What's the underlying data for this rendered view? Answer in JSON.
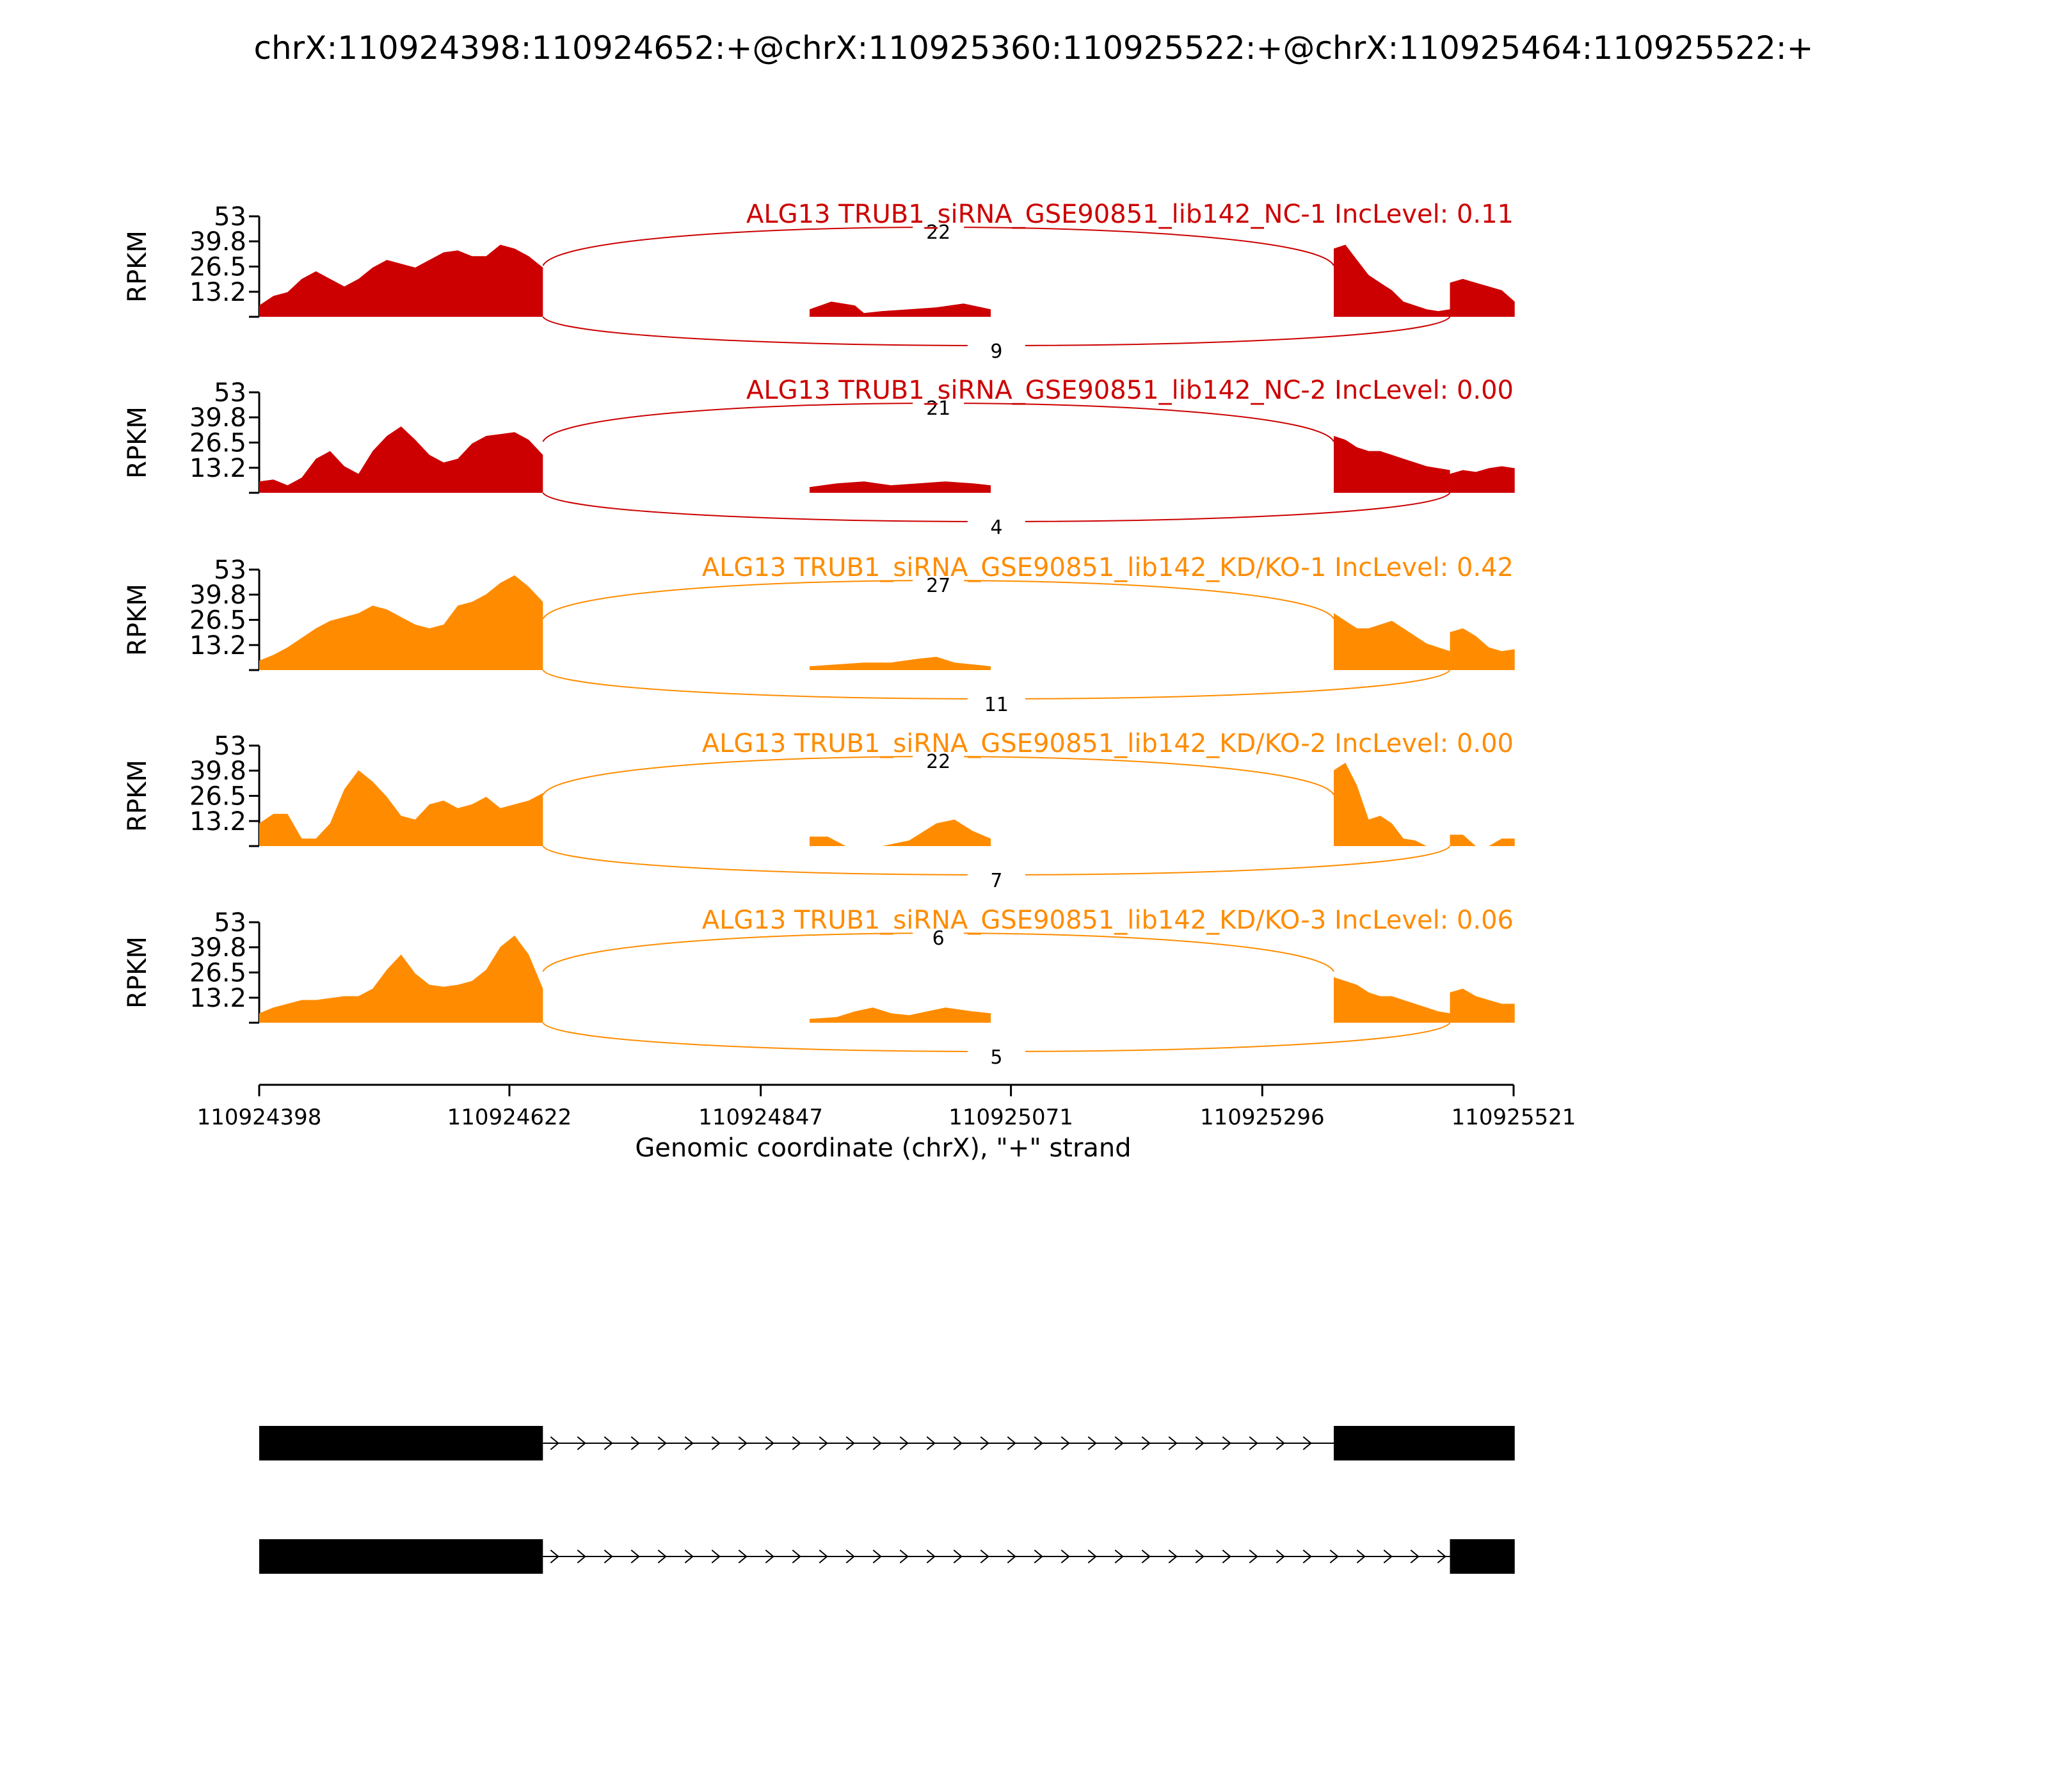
{
  "title": "chrX:110924398:110924652:+@chrX:110925360:110925522:+@chrX:110925464:110925522:+",
  "colors": {
    "nc": "#cc0000",
    "kd": "#ff8c00",
    "axis": "#000000",
    "structure": "#000000"
  },
  "chart_data": {
    "type": "area",
    "xlabel": "Genomic coordinate (chrX), \"+\" strand",
    "xticks": [
      "110924398",
      "110924622",
      "110924847",
      "110925071",
      "110925296",
      "110925521"
    ],
    "xlim": [
      110924398,
      110925521
    ],
    "ylabel": "RPKM",
    "yticks": [
      "53",
      "39.8",
      "26.5",
      "13.2"
    ],
    "ylim": [
      0,
      53
    ],
    "exons": {
      "upstream": [
        110924398,
        110924652
      ],
      "middle": [
        110925360,
        110925522
      ],
      "skipped_region_start": 110925464
    },
    "tracks": [
      {
        "label": "ALG13 TRUB1_siRNA_GSE90851_lib142_NC-1 IncLevel: 0.11",
        "group": "nc",
        "junction_upper": "22",
        "junction_lower": "9",
        "exon1": [
          [
            0,
            6
          ],
          [
            0.05,
            11
          ],
          [
            0.1,
            13
          ],
          [
            0.15,
            20
          ],
          [
            0.2,
            24
          ],
          [
            0.25,
            20
          ],
          [
            0.3,
            16
          ],
          [
            0.35,
            20
          ],
          [
            0.4,
            26
          ],
          [
            0.45,
            30
          ],
          [
            0.5,
            28
          ],
          [
            0.55,
            26
          ],
          [
            0.6,
            30
          ],
          [
            0.65,
            34
          ],
          [
            0.7,
            35
          ],
          [
            0.75,
            32
          ],
          [
            0.8,
            32
          ],
          [
            0.85,
            38
          ],
          [
            0.9,
            36
          ],
          [
            0.95,
            32
          ],
          [
            1,
            26
          ]
        ],
        "mid": [
          [
            0,
            4
          ],
          [
            0.12,
            8
          ],
          [
            0.25,
            6
          ],
          [
            0.3,
            2
          ],
          [
            0.4,
            3
          ],
          [
            0.55,
            4
          ],
          [
            0.7,
            5
          ],
          [
            0.85,
            7
          ],
          [
            1,
            4
          ]
        ],
        "exon2": [
          [
            0,
            36
          ],
          [
            0.1,
            38
          ],
          [
            0.2,
            30
          ],
          [
            0.3,
            22
          ],
          [
            0.4,
            18
          ],
          [
            0.5,
            14
          ],
          [
            0.6,
            8
          ],
          [
            0.7,
            6
          ],
          [
            0.8,
            4
          ],
          [
            0.9,
            3
          ],
          [
            1,
            4
          ]
        ],
        "exon3": [
          [
            0,
            18
          ],
          [
            0.2,
            20
          ],
          [
            0.4,
            18
          ],
          [
            0.6,
            16
          ],
          [
            0.8,
            14
          ],
          [
            1,
            8
          ]
        ]
      },
      {
        "label": "ALG13 TRUB1_siRNA_GSE90851_lib142_NC-2 IncLevel: 0.00",
        "group": "nc",
        "junction_upper": "21",
        "junction_lower": "4",
        "exon1": [
          [
            0,
            6
          ],
          [
            0.05,
            7
          ],
          [
            0.1,
            4
          ],
          [
            0.15,
            8
          ],
          [
            0.2,
            18
          ],
          [
            0.25,
            22
          ],
          [
            0.3,
            14
          ],
          [
            0.35,
            10
          ],
          [
            0.4,
            22
          ],
          [
            0.45,
            30
          ],
          [
            0.5,
            35
          ],
          [
            0.55,
            28
          ],
          [
            0.6,
            20
          ],
          [
            0.65,
            16
          ],
          [
            0.7,
            18
          ],
          [
            0.75,
            26
          ],
          [
            0.8,
            30
          ],
          [
            0.85,
            31
          ],
          [
            0.9,
            32
          ],
          [
            0.95,
            28
          ],
          [
            1,
            20
          ]
        ],
        "mid": [
          [
            0,
            3
          ],
          [
            0.15,
            5
          ],
          [
            0.3,
            6
          ],
          [
            0.45,
            4
          ],
          [
            0.6,
            5
          ],
          [
            0.75,
            6
          ],
          [
            0.9,
            5
          ],
          [
            1,
            4
          ]
        ],
        "exon2": [
          [
            0,
            30
          ],
          [
            0.1,
            28
          ],
          [
            0.2,
            24
          ],
          [
            0.3,
            22
          ],
          [
            0.4,
            22
          ],
          [
            0.5,
            20
          ],
          [
            0.6,
            18
          ],
          [
            0.7,
            16
          ],
          [
            0.8,
            14
          ],
          [
            0.9,
            13
          ],
          [
            1,
            12
          ]
        ],
        "exon3": [
          [
            0,
            10
          ],
          [
            0.2,
            12
          ],
          [
            0.4,
            11
          ],
          [
            0.6,
            13
          ],
          [
            0.8,
            14
          ],
          [
            1,
            13
          ]
        ]
      },
      {
        "label": "ALG13 TRUB1_siRNA_GSE90851_lib142_KD/KO-1 IncLevel: 0.42",
        "group": "kd",
        "junction_upper": "27",
        "junction_lower": "11",
        "exon1": [
          [
            0,
            5
          ],
          [
            0.05,
            8
          ],
          [
            0.1,
            12
          ],
          [
            0.15,
            17
          ],
          [
            0.2,
            22
          ],
          [
            0.25,
            26
          ],
          [
            0.3,
            28
          ],
          [
            0.35,
            30
          ],
          [
            0.4,
            34
          ],
          [
            0.45,
            32
          ],
          [
            0.5,
            28
          ],
          [
            0.55,
            24
          ],
          [
            0.6,
            22
          ],
          [
            0.65,
            24
          ],
          [
            0.7,
            34
          ],
          [
            0.75,
            36
          ],
          [
            0.8,
            40
          ],
          [
            0.85,
            46
          ],
          [
            0.9,
            50
          ],
          [
            0.95,
            44
          ],
          [
            1,
            36
          ]
        ],
        "mid": [
          [
            0,
            2
          ],
          [
            0.15,
            3
          ],
          [
            0.3,
            4
          ],
          [
            0.45,
            4
          ],
          [
            0.6,
            6
          ],
          [
            0.7,
            7
          ],
          [
            0.8,
            4
          ],
          [
            0.9,
            3
          ],
          [
            1,
            2
          ]
        ],
        "exon2": [
          [
            0,
            30
          ],
          [
            0.1,
            26
          ],
          [
            0.2,
            22
          ],
          [
            0.3,
            22
          ],
          [
            0.4,
            24
          ],
          [
            0.5,
            26
          ],
          [
            0.6,
            22
          ],
          [
            0.7,
            18
          ],
          [
            0.8,
            14
          ],
          [
            0.9,
            12
          ],
          [
            1,
            10
          ]
        ],
        "exon3": [
          [
            0,
            20
          ],
          [
            0.2,
            22
          ],
          [
            0.4,
            18
          ],
          [
            0.6,
            12
          ],
          [
            0.8,
            10
          ],
          [
            1,
            11
          ]
        ]
      },
      {
        "label": "ALG13 TRUB1_siRNA_GSE90851_lib142_KD/KO-2 IncLevel: 0.00",
        "group": "kd",
        "junction_upper": "22",
        "junction_lower": "7",
        "exon1": [
          [
            0,
            12
          ],
          [
            0.05,
            17
          ],
          [
            0.1,
            17
          ],
          [
            0.15,
            4
          ],
          [
            0.2,
            4
          ],
          [
            0.25,
            12
          ],
          [
            0.3,
            30
          ],
          [
            0.35,
            40
          ],
          [
            0.4,
            34
          ],
          [
            0.45,
            26
          ],
          [
            0.5,
            16
          ],
          [
            0.55,
            14
          ],
          [
            0.6,
            22
          ],
          [
            0.65,
            24
          ],
          [
            0.7,
            20
          ],
          [
            0.75,
            22
          ],
          [
            0.8,
            26
          ],
          [
            0.85,
            20
          ],
          [
            0.9,
            22
          ],
          [
            0.95,
            24
          ],
          [
            1,
            28
          ]
        ],
        "mid": [
          [
            0,
            5
          ],
          [
            0.1,
            5
          ],
          [
            0.2,
            0
          ],
          [
            0.4,
            0
          ],
          [
            0.55,
            3
          ],
          [
            0.7,
            12
          ],
          [
            0.8,
            14
          ],
          [
            0.9,
            8
          ],
          [
            1,
            4
          ]
        ],
        "exon2": [
          [
            0,
            40
          ],
          [
            0.1,
            44
          ],
          [
            0.2,
            32
          ],
          [
            0.3,
            14
          ],
          [
            0.4,
            16
          ],
          [
            0.5,
            12
          ],
          [
            0.6,
            4
          ],
          [
            0.7,
            3
          ],
          [
            0.8,
            0
          ],
          [
            0.9,
            0
          ],
          [
            1,
            0
          ]
        ],
        "exon3": [
          [
            0,
            6
          ],
          [
            0.2,
            6
          ],
          [
            0.4,
            0
          ],
          [
            0.6,
            0
          ],
          [
            0.8,
            4
          ],
          [
            1,
            4
          ]
        ]
      },
      {
        "label": "ALG13 TRUB1_siRNA_GSE90851_lib142_KD/KO-3 IncLevel: 0.06",
        "group": "kd",
        "junction_upper": "6",
        "junction_lower": "5",
        "exon1": [
          [
            0,
            5
          ],
          [
            0.05,
            8
          ],
          [
            0.1,
            10
          ],
          [
            0.15,
            12
          ],
          [
            0.2,
            12
          ],
          [
            0.25,
            13
          ],
          [
            0.3,
            14
          ],
          [
            0.35,
            14
          ],
          [
            0.4,
            18
          ],
          [
            0.45,
            28
          ],
          [
            0.5,
            36
          ],
          [
            0.55,
            26
          ],
          [
            0.6,
            20
          ],
          [
            0.65,
            19
          ],
          [
            0.7,
            20
          ],
          [
            0.75,
            22
          ],
          [
            0.8,
            28
          ],
          [
            0.85,
            40
          ],
          [
            0.9,
            46
          ],
          [
            0.95,
            36
          ],
          [
            1,
            18
          ]
        ],
        "mid": [
          [
            0,
            2
          ],
          [
            0.15,
            3
          ],
          [
            0.25,
            6
          ],
          [
            0.35,
            8
          ],
          [
            0.45,
            5
          ],
          [
            0.55,
            4
          ],
          [
            0.65,
            6
          ],
          [
            0.75,
            8
          ],
          [
            0.9,
            6
          ],
          [
            1,
            5
          ]
        ],
        "exon2": [
          [
            0,
            24
          ],
          [
            0.1,
            22
          ],
          [
            0.2,
            20
          ],
          [
            0.3,
            16
          ],
          [
            0.4,
            14
          ],
          [
            0.5,
            14
          ],
          [
            0.6,
            12
          ],
          [
            0.7,
            10
          ],
          [
            0.8,
            8
          ],
          [
            0.9,
            6
          ],
          [
            1,
            5
          ]
        ],
        "exon3": [
          [
            0,
            16
          ],
          [
            0.2,
            18
          ],
          [
            0.4,
            14
          ],
          [
            0.6,
            12
          ],
          [
            0.8,
            10
          ],
          [
            1,
            10
          ]
        ]
      }
    ]
  }
}
